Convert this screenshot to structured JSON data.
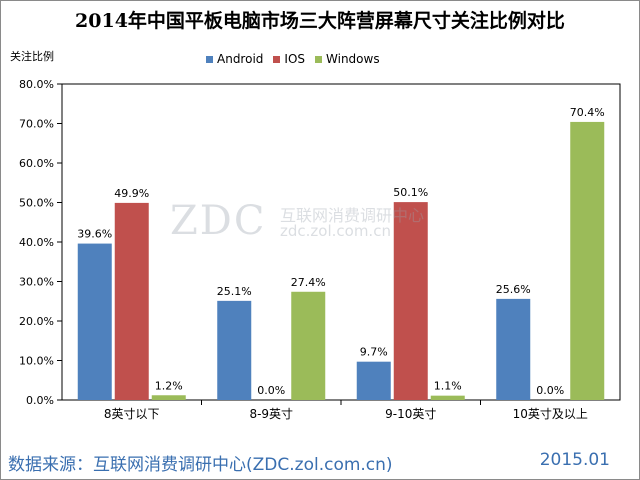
{
  "title": "2014年中国平板电脑市场三大阵营屏幕尺寸关注比例对比",
  "ylabel": "关注比例",
  "footer": {
    "source": "数据来源：互联网消费调研中心(ZDC.zol.com.cn)",
    "date": "2015.01"
  },
  "watermark": {
    "logo": "ZDC",
    "cn": "互联网消费调研中心",
    "url": "zdc.zol.com.cn"
  },
  "chart_data": {
    "type": "bar",
    "title": "2014年中国平板电脑市场三大阵营屏幕尺寸关注比例对比",
    "ylabel": "关注比例",
    "xlabel": "",
    "categories": [
      "8英寸以下",
      "8-9英寸",
      "9-10英寸",
      "10英寸及以上"
    ],
    "series": [
      {
        "name": "Android",
        "values": [
          39.6,
          25.1,
          9.7,
          25.6
        ],
        "labels": [
          "39.6%",
          "25.1%",
          "9.7%",
          "25.6%"
        ],
        "color": "#4F81BD"
      },
      {
        "name": "IOS",
        "values": [
          49.9,
          0.0,
          50.1,
          0.0
        ],
        "labels": [
          "49.9%",
          "0.0%",
          "50.1%",
          "0.0%"
        ],
        "color": "#C0504D"
      },
      {
        "name": "Windows",
        "values": [
          1.2,
          27.4,
          1.1,
          70.4
        ],
        "labels": [
          "1.2%",
          "27.4%",
          "1.1%",
          "70.4%"
        ],
        "color": "#9BBB59"
      }
    ],
    "ylim": [
      0,
      80
    ],
    "yticks": [
      "0.0%",
      "10.0%",
      "20.0%",
      "30.0%",
      "40.0%",
      "50.0%",
      "60.0%",
      "70.0%",
      "80.0%"
    ],
    "legend_position": "top",
    "grid": false
  }
}
